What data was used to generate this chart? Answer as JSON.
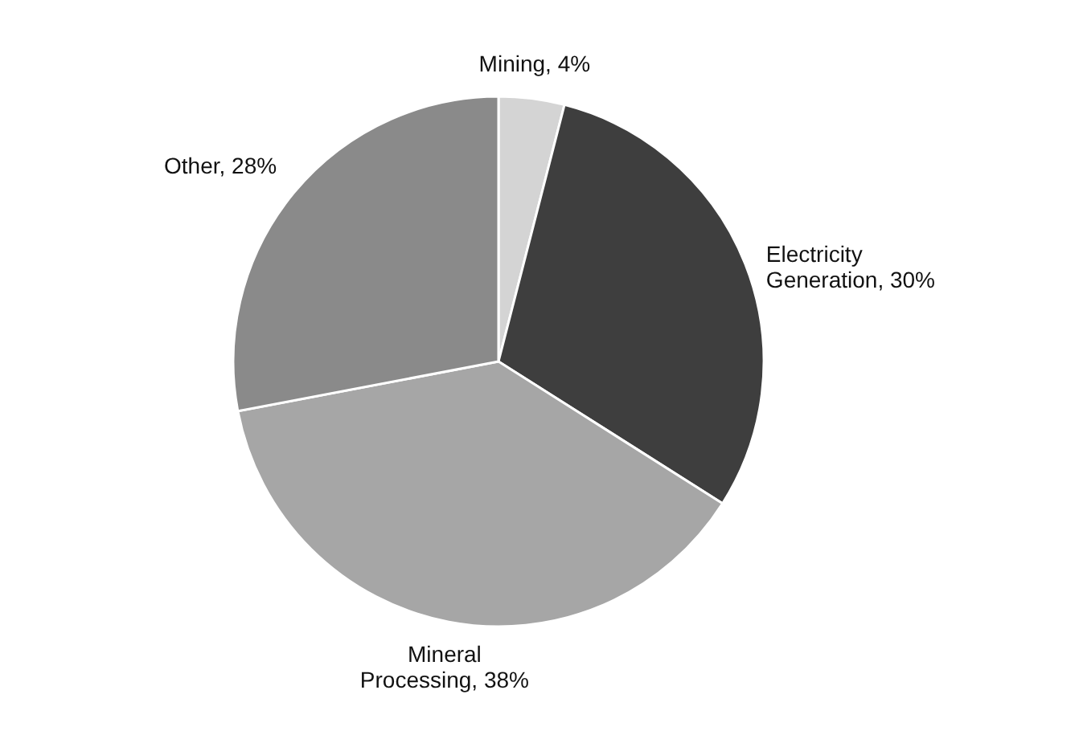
{
  "chart_data": {
    "type": "pie",
    "categories": [
      "Mining",
      "Electricity Generation",
      "Mineral Processing",
      "Other"
    ],
    "values": [
      4,
      30,
      38,
      28
    ],
    "value_labels": [
      "4%",
      "30%",
      "38%",
      "28%"
    ],
    "colors": [
      "#d4d4d4",
      "#3e3e3e",
      "#a6a6a6",
      "#8a8a8a"
    ]
  }
}
